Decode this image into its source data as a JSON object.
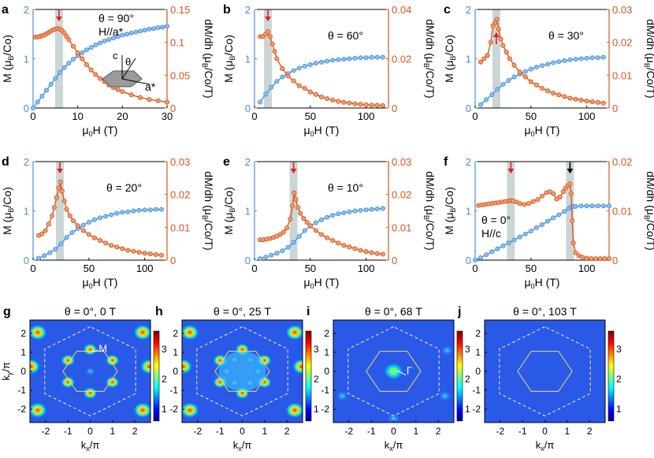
{
  "figure": {
    "colors": {
      "magnetization": "#4a8fd8",
      "derivative": "#d9541e",
      "highlight": "#b8c8c8",
      "arrow_red": "#e0201b",
      "arrow_black": "#000000",
      "hexagon": "#e8e070",
      "zone": "#ffffff"
    }
  },
  "chart_data": [
    {
      "panel": "a",
      "type": "line",
      "annotation": "θ = 90°",
      "annotation2": "H//a*",
      "inset": {
        "c": "c",
        "theta": "θ",
        "astar": "a*"
      },
      "xlabel": "μ0H (T)",
      "ylabel": "M (μB/Co)",
      "y2label": "dM/dh (μB/Co/T)",
      "xlim": [
        0,
        30
      ],
      "xticks": [
        "0",
        "10",
        "20",
        "30"
      ],
      "ylim": [
        0,
        2
      ],
      "yticks": [
        "0",
        "1",
        "2"
      ],
      "y2lim": [
        0,
        0.15
      ],
      "y2ticks": [
        "0",
        "0.05",
        "0.1",
        "0.15"
      ],
      "highlight_x": 5.8,
      "arrows": [
        {
          "x": 5.8,
          "color": "red",
          "dir": "down"
        }
      ],
      "series": [
        {
          "axis": "left",
          "x": [
            0,
            1,
            2,
            3,
            4,
            5,
            6,
            7,
            8,
            9,
            10,
            11,
            12,
            13,
            14,
            15,
            16,
            17,
            18,
            19,
            20,
            21,
            22,
            23,
            24,
            25,
            26,
            27,
            28,
            29,
            30
          ],
          "values": [
            0,
            0.12,
            0.24,
            0.36,
            0.48,
            0.6,
            0.72,
            0.82,
            0.91,
            0.99,
            1.06,
            1.12,
            1.18,
            1.23,
            1.28,
            1.32,
            1.36,
            1.39,
            1.42,
            1.45,
            1.48,
            1.5,
            1.52,
            1.54,
            1.56,
            1.58,
            1.6,
            1.61,
            1.63,
            1.64,
            1.66
          ]
        },
        {
          "axis": "right",
          "x": [
            0.5,
            1,
            1.5,
            2,
            2.5,
            3,
            3.5,
            4,
            4.5,
            5,
            5.5,
            6,
            6.5,
            7,
            7.5,
            8,
            9,
            10,
            11,
            12,
            13,
            14,
            15,
            16,
            17,
            18,
            19,
            20,
            22,
            24,
            26,
            28,
            30
          ],
          "values": [
            0.108,
            0.108,
            0.109,
            0.11,
            0.111,
            0.113,
            0.115,
            0.117,
            0.119,
            0.12,
            0.121,
            0.12,
            0.118,
            0.114,
            0.109,
            0.104,
            0.094,
            0.084,
            0.075,
            0.066,
            0.058,
            0.051,
            0.045,
            0.04,
            0.035,
            0.031,
            0.028,
            0.025,
            0.02,
            0.016,
            0.013,
            0.011,
            0.009
          ]
        }
      ]
    },
    {
      "panel": "b",
      "type": "line",
      "annotation": "θ = 60°",
      "xlabel": "μ0H (T)",
      "ylabel": "M (μB/Co)",
      "y2label": "dM/dh (μB/Co/T)",
      "xlim": [
        0,
        120
      ],
      "xticks": [
        "0",
        "50",
        "100"
      ],
      "ylim": [
        0,
        2
      ],
      "yticks": [
        "0",
        "1",
        "2"
      ],
      "y2lim": [
        0,
        0.04
      ],
      "y2ticks": [
        "0",
        "0.02",
        "0.04"
      ],
      "highlight_x": 12,
      "arrows": [
        {
          "x": 12,
          "color": "red",
          "dir": "down"
        }
      ],
      "series": [
        {
          "axis": "left",
          "x": [
            5,
            10,
            15,
            20,
            25,
            30,
            35,
            40,
            45,
            50,
            55,
            60,
            65,
            70,
            75,
            80,
            85,
            90,
            95,
            100,
            105,
            110,
            115
          ],
          "values": [
            0.12,
            0.28,
            0.42,
            0.54,
            0.63,
            0.7,
            0.76,
            0.81,
            0.85,
            0.88,
            0.91,
            0.93,
            0.95,
            0.97,
            0.98,
            0.99,
            1.0,
            1.01,
            1.02,
            1.02,
            1.03,
            1.03,
            1.03
          ]
        },
        {
          "axis": "right",
          "x": [
            5,
            7.5,
            10,
            12,
            14,
            16,
            18,
            20,
            25,
            30,
            35,
            40,
            45,
            50,
            55,
            60,
            65,
            70,
            75,
            80,
            85,
            90,
            95,
            100,
            105,
            110,
            115
          ],
          "values": [
            0.029,
            0.029,
            0.03,
            0.031,
            0.029,
            0.026,
            0.023,
            0.02,
            0.016,
            0.013,
            0.011,
            0.009,
            0.008,
            0.0065,
            0.0055,
            0.0045,
            0.0038,
            0.0032,
            0.0027,
            0.0023,
            0.002,
            0.0017,
            0.0015,
            0.0013,
            0.0012,
            0.0011,
            0.001
          ]
        }
      ]
    },
    {
      "panel": "c",
      "type": "line",
      "annotation": "θ = 30°",
      "xlabel": "μ0H (T)",
      "ylabel": "M (μB/Co)",
      "y2label": "dM/dh (μB/Co/T)",
      "xlim": [
        0,
        120
      ],
      "xticks": [
        "0",
        "50",
        "100"
      ],
      "ylim": [
        0,
        2
      ],
      "yticks": [
        "0",
        "1",
        "2"
      ],
      "y2lim": [
        0,
        0.03
      ],
      "y2ticks": [
        "0",
        "0.01",
        "0.02",
        "0.03"
      ],
      "highlight_x": 19,
      "arrows": [
        {
          "x": 19,
          "color": "red",
          "dir": "up"
        }
      ],
      "series": [
        {
          "axis": "left",
          "x": [
            5,
            10,
            15,
            20,
            25,
            30,
            35,
            40,
            45,
            50,
            55,
            60,
            65,
            70,
            75,
            80,
            85,
            90,
            95,
            100,
            105,
            110,
            115
          ],
          "values": [
            0.07,
            0.17,
            0.27,
            0.38,
            0.48,
            0.56,
            0.63,
            0.69,
            0.74,
            0.79,
            0.83,
            0.86,
            0.89,
            0.92,
            0.94,
            0.96,
            0.98,
            0.99,
            1.0,
            1.01,
            1.02,
            1.02,
            1.03
          ]
        },
        {
          "axis": "right",
          "x": [
            5,
            8,
            11,
            14,
            16,
            18,
            19.5,
            21,
            23,
            25,
            28,
            31,
            35,
            40,
            45,
            50,
            55,
            60,
            65,
            70,
            75,
            80,
            85,
            90,
            95,
            100,
            105,
            110,
            115
          ],
          "values": [
            0.014,
            0.015,
            0.016,
            0.02,
            0.025,
            0.026,
            0.027,
            0.024,
            0.021,
            0.019,
            0.017,
            0.015,
            0.013,
            0.011,
            0.0095,
            0.008,
            0.007,
            0.006,
            0.0052,
            0.0045,
            0.004,
            0.0035,
            0.003,
            0.0027,
            0.0024,
            0.0021,
            0.0019,
            0.0017,
            0.0015
          ]
        }
      ]
    },
    {
      "panel": "d",
      "type": "line",
      "annotation": "θ = 20°",
      "xlabel": "μ0H (T)",
      "ylabel": "M (μB/Co)",
      "y2label": "dM/dh (μB/Co/T)",
      "xlim": [
        0,
        120
      ],
      "xticks": [
        "0",
        "50",
        "100"
      ],
      "ylim": [
        0,
        2
      ],
      "yticks": [
        "0",
        "1",
        "2"
      ],
      "y2lim": [
        0,
        0.03
      ],
      "y2ticks": [
        "0",
        "0.01",
        "0.02",
        "0.03"
      ],
      "highlight_x": 24,
      "arrows": [
        {
          "x": 24,
          "color": "red",
          "dir": "down"
        }
      ],
      "series": [
        {
          "axis": "left",
          "x": [
            5,
            10,
            15,
            20,
            25,
            30,
            35,
            40,
            45,
            50,
            55,
            60,
            65,
            70,
            75,
            80,
            85,
            90,
            95,
            100,
            105,
            110,
            115
          ],
          "values": [
            0.04,
            0.09,
            0.15,
            0.22,
            0.33,
            0.46,
            0.56,
            0.64,
            0.71,
            0.77,
            0.82,
            0.86,
            0.89,
            0.92,
            0.95,
            0.97,
            0.98,
            1.0,
            1.01,
            1.02,
            1.02,
            1.03,
            1.03
          ]
        },
        {
          "axis": "right",
          "x": [
            5,
            8,
            11,
            14,
            17,
            19,
            21,
            23,
            24.5,
            26,
            28,
            30,
            33,
            36,
            40,
            45,
            50,
            55,
            60,
            65,
            70,
            75,
            80,
            85,
            90,
            95,
            100,
            105,
            110,
            115
          ],
          "values": [
            0.0075,
            0.008,
            0.009,
            0.011,
            0.0135,
            0.016,
            0.019,
            0.022,
            0.0238,
            0.021,
            0.018,
            0.0155,
            0.0135,
            0.012,
            0.0105,
            0.009,
            0.0078,
            0.0068,
            0.006,
            0.0052,
            0.0045,
            0.004,
            0.0035,
            0.003,
            0.0027,
            0.0024,
            0.0021,
            0.0019,
            0.0017,
            0.0015
          ]
        }
      ]
    },
    {
      "panel": "e",
      "type": "line",
      "annotation": "θ = 10°",
      "xlabel": "μ0H (T)",
      "ylabel": "M (μB/Co)",
      "y2label": "dM/dh (μB/Co/T)",
      "xlim": [
        0,
        120
      ],
      "xticks": [
        "0",
        "50",
        "100"
      ],
      "ylim": [
        0,
        2
      ],
      "yticks": [
        "0",
        "1",
        "2"
      ],
      "y2lim": [
        0,
        0.03
      ],
      "y2ticks": [
        "0",
        "0.01",
        "0.02",
        "0.03"
      ],
      "highlight_x": 35,
      "arrows": [
        {
          "x": 35,
          "color": "red",
          "dir": "down"
        }
      ],
      "series": [
        {
          "axis": "left",
          "x": [
            5,
            10,
            15,
            20,
            25,
            30,
            35,
            40,
            45,
            50,
            55,
            60,
            65,
            70,
            75,
            80,
            85,
            90,
            95,
            100,
            105,
            110,
            115
          ],
          "values": [
            0.03,
            0.06,
            0.1,
            0.14,
            0.19,
            0.26,
            0.36,
            0.48,
            0.6,
            0.69,
            0.76,
            0.82,
            0.87,
            0.91,
            0.94,
            0.96,
            0.98,
            1.0,
            1.01,
            1.02,
            1.03,
            1.04,
            1.05
          ]
        },
        {
          "axis": "right",
          "x": [
            5,
            8,
            11,
            14,
            17,
            20,
            23,
            26,
            29,
            32,
            34,
            35.5,
            37,
            39,
            41,
            44,
            47,
            50,
            55,
            60,
            65,
            70,
            75,
            80,
            85,
            90,
            95,
            100,
            105,
            110,
            115
          ],
          "values": [
            0.0062,
            0.0062,
            0.0064,
            0.0066,
            0.0069,
            0.0073,
            0.0078,
            0.0085,
            0.0098,
            0.0125,
            0.0165,
            0.0205,
            0.0185,
            0.016,
            0.0143,
            0.0127,
            0.0115,
            0.0105,
            0.009,
            0.0078,
            0.0068,
            0.006,
            0.0052,
            0.0045,
            0.004,
            0.0035,
            0.003,
            0.0026,
            0.0023,
            0.002,
            0.0018
          ]
        }
      ]
    },
    {
      "panel": "f",
      "type": "line",
      "annotation": "θ = 0°",
      "annotation2": "H//c",
      "xlabel": "μ0H (T)",
      "ylabel": "M (μB/Co)",
      "y2label": "dM/dh (μB/Co/T)",
      "xlim": [
        0,
        120
      ],
      "xticks": [
        "0",
        "50",
        "100"
      ],
      "ylim": [
        0,
        2
      ],
      "yticks": [
        "0",
        "1",
        "2"
      ],
      "y2lim": [
        0,
        0.02
      ],
      "y2ticks": [
        "0",
        "0.01",
        "0.02"
      ],
      "highlight_x": [
        32,
        85
      ],
      "arrows": [
        {
          "x": 32,
          "color": "red",
          "dir": "down"
        },
        {
          "x": 85,
          "color": "black",
          "dir": "down"
        }
      ],
      "series": [
        {
          "axis": "left",
          "x": [
            0,
            5,
            10,
            15,
            20,
            25,
            30,
            35,
            40,
            45,
            50,
            55,
            60,
            65,
            70,
            75,
            80,
            84,
            86,
            88,
            90,
            95,
            100,
            105,
            110,
            115,
            120
          ],
          "values": [
            0,
            0.05,
            0.11,
            0.17,
            0.23,
            0.29,
            0.35,
            0.41,
            0.47,
            0.53,
            0.59,
            0.66,
            0.72,
            0.79,
            0.86,
            0.92,
            0.99,
            1.05,
            1.08,
            1.09,
            1.09,
            1.1,
            1.1,
            1.1,
            1.1,
            1.1,
            1.1
          ]
        },
        {
          "axis": "right",
          "x": [
            3,
            6,
            9,
            12,
            15,
            18,
            21,
            24,
            27,
            30,
            32,
            34,
            37,
            40,
            44,
            48,
            52,
            56,
            60,
            64,
            67,
            70,
            73,
            76,
            79,
            81,
            83,
            85,
            86,
            87,
            88,
            90,
            93,
            96,
            100,
            104,
            108,
            112,
            116,
            120
          ],
          "values": [
            0.0111,
            0.0112,
            0.0113,
            0.0114,
            0.0115,
            0.0116,
            0.0117,
            0.0118,
            0.0119,
            0.012,
            0.0121,
            0.012,
            0.0118,
            0.0115,
            0.0113,
            0.0115,
            0.0119,
            0.0123,
            0.013,
            0.0137,
            0.0139,
            0.0135,
            0.0124,
            0.0128,
            0.0139,
            0.0146,
            0.0151,
            0.0155,
            0.0135,
            0.008,
            0.0035,
            0.0015,
            0.0009,
            0.0006,
            0.0004,
            0.0003,
            0.0003,
            0.0003,
            0.0003,
            0.0003
          ]
        }
      ]
    },
    {
      "panel": "g",
      "type": "heatmap",
      "title": "θ = 0°, 0 T",
      "point_labels": [
        "M"
      ],
      "xlabel": "kx/π",
      "ylabel": "ky/π",
      "xticks": [
        "-2",
        "-1",
        "0",
        "1",
        "2"
      ],
      "yticks": [
        "2",
        "1",
        "0",
        "-1",
        "-2"
      ],
      "colorbar": [
        "3",
        "2",
        "1"
      ]
    },
    {
      "panel": "h",
      "type": "heatmap",
      "title": "θ = 0°, 25 T",
      "xlabel": "kx/π",
      "ylabel": "ky/π",
      "xticks": [
        "-2",
        "-1",
        "0",
        "1",
        "2"
      ],
      "yticks": [
        "2",
        "1",
        "0",
        "-1",
        "-2"
      ],
      "colorbar": [
        "3",
        "2",
        "1"
      ]
    },
    {
      "panel": "i",
      "type": "heatmap",
      "title": "θ = 0°, 68 T",
      "point_labels": [
        "Γ"
      ],
      "xlabel": "kx/π",
      "ylabel": "ky/π",
      "xticks": [
        "-2",
        "-1",
        "0",
        "1",
        "2"
      ],
      "yticks": [
        "2",
        "1",
        "0",
        "-1",
        "-2"
      ],
      "colorbar": [
        "3",
        "2",
        "1"
      ]
    },
    {
      "panel": "j",
      "type": "heatmap",
      "title": "θ = 0°, 103 T",
      "xlabel": "kx/π",
      "ylabel": "ky/π",
      "xticks": [
        "-2",
        "-1",
        "0",
        "1",
        "2"
      ],
      "yticks": [
        "2",
        "1",
        "0",
        "-1",
        "-2"
      ],
      "colorbar": [
        "3",
        "2",
        "1"
      ]
    }
  ]
}
